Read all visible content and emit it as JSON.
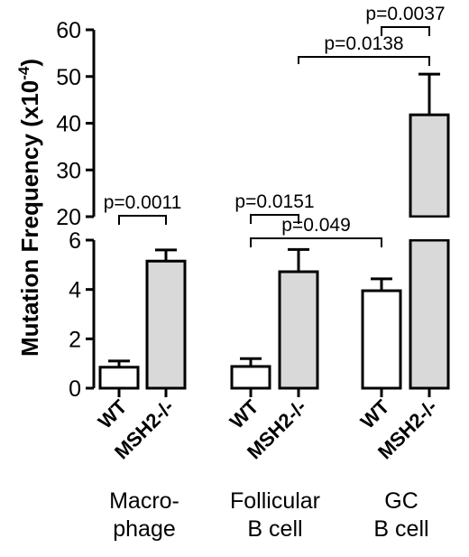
{
  "chart_data": {
    "type": "bar",
    "ylabel": "Mutation Frequency (x10",
    "ylabel_exponent": "-4",
    "ylabel_close": ")",
    "axis_break": true,
    "lower_axis": {
      "ylim": [
        0,
        6
      ],
      "ticks": [
        "0",
        "2",
        "4",
        "6"
      ]
    },
    "upper_axis": {
      "ylim": [
        20,
        60
      ],
      "ticks": [
        "20",
        "30",
        "40",
        "50",
        "60"
      ]
    },
    "series": [
      {
        "name": "WT",
        "fill": "#ffffff"
      },
      {
        "name": "MSH2-/-",
        "fill": "#d9d9d9"
      }
    ],
    "groups": [
      {
        "label_lines": [
          "Macro-",
          "phage"
        ],
        "bars": [
          {
            "series": "WT",
            "value": 0.85,
            "error": 0.25
          },
          {
            "series": "MSH2-/-",
            "value": 5.15,
            "error": 0.45
          }
        ]
      },
      {
        "label_lines": [
          "Follicular",
          "B cell"
        ],
        "bars": [
          {
            "series": "WT",
            "value": 0.88,
            "error": 0.32
          },
          {
            "series": "MSH2-/-",
            "value": 4.72,
            "error": 0.9
          }
        ]
      },
      {
        "label_lines": [
          "GC",
          "B cell"
        ],
        "bars": [
          {
            "series": "WT",
            "value": 3.95,
            "error": 0.48
          },
          {
            "series": "MSH2-/-",
            "value": 41.8,
            "error": 8.7
          }
        ]
      }
    ],
    "annotations": [
      {
        "text": "p=0.0011",
        "from": [
          0,
          0
        ],
        "to": [
          0,
          1
        ]
      },
      {
        "text": "p=0.0151",
        "from": [
          1,
          0
        ],
        "to": [
          1,
          1
        ]
      },
      {
        "text": "p=0.049",
        "from": [
          1,
          0
        ],
        "to": [
          2,
          0
        ]
      },
      {
        "text": "p=0.0138",
        "from": [
          1,
          1
        ],
        "to": [
          2,
          1
        ]
      },
      {
        "text": "p=0.0037",
        "from": [
          2,
          0
        ],
        "to": [
          2,
          1
        ]
      }
    ]
  }
}
